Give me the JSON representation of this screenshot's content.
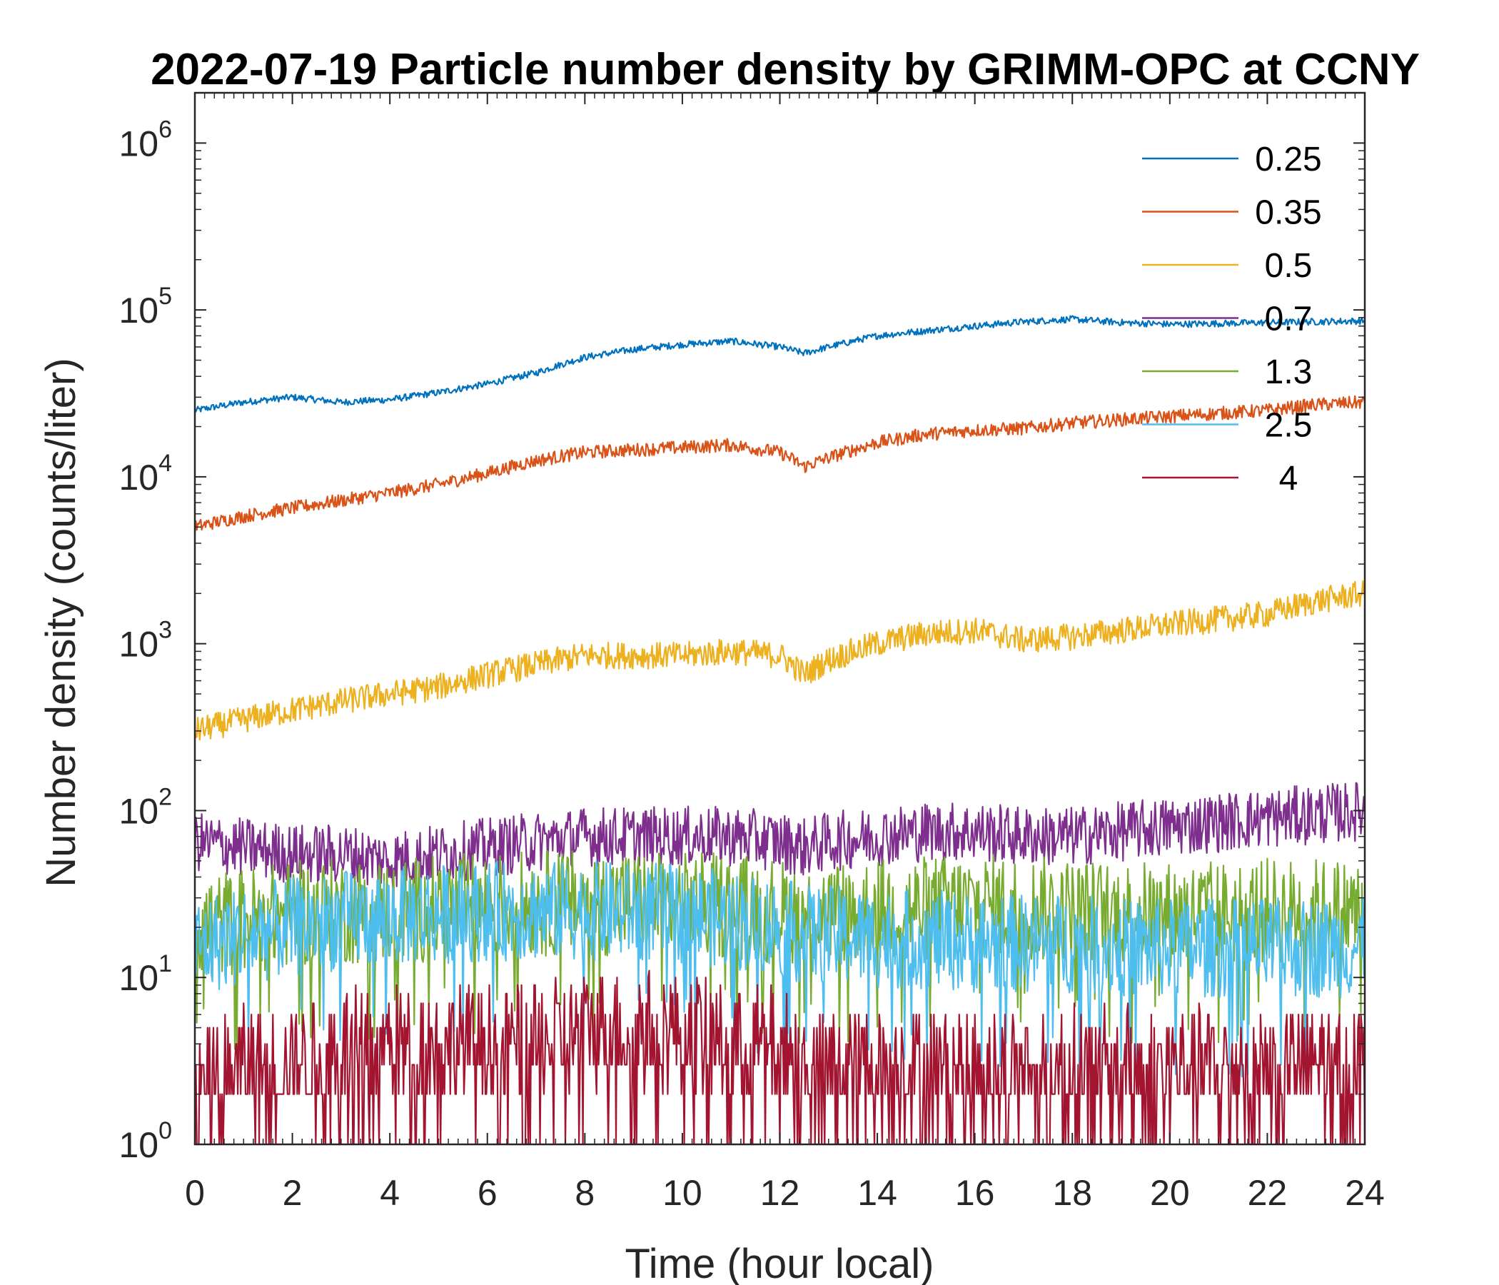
{
  "chart_data": {
    "type": "line",
    "title": "2022-07-19 Particle number density by GRIMM-OPC at CCNY",
    "xlabel": "Time (hour local)",
    "ylabel": "Number density (counts/liter)",
    "xlim": [
      0,
      24
    ],
    "ylim": [
      1,
      2000000
    ],
    "yscale": "log",
    "grid": false,
    "legend_position": "top-right",
    "x_ticks": [
      "0",
      "2",
      "4",
      "6",
      "8",
      "10",
      "12",
      "14",
      "16",
      "18",
      "20",
      "22",
      "24"
    ],
    "y_ticks": [
      {
        "base": "10",
        "exp": "0"
      },
      {
        "base": "10",
        "exp": "1"
      },
      {
        "base": "10",
        "exp": "2"
      },
      {
        "base": "10",
        "exp": "3"
      },
      {
        "base": "10",
        "exp": "4"
      },
      {
        "base": "10",
        "exp": "5"
      },
      {
        "base": "10",
        "exp": "6"
      }
    ],
    "x": [
      0,
      1,
      2,
      3,
      4,
      5,
      6,
      7,
      8,
      9,
      10,
      11,
      12,
      12.5,
      13,
      14,
      15,
      16,
      17,
      18,
      19,
      20,
      21,
      22,
      23,
      24
    ],
    "series": [
      {
        "name": "0.25",
        "color": "#0072BD",
        "values": [
          25000,
          28000,
          30000,
          28000,
          29000,
          32000,
          36000,
          42000,
          52000,
          58000,
          62000,
          65000,
          60000,
          55000,
          60000,
          70000,
          75000,
          80000,
          85000,
          88000,
          84000,
          82000,
          83000,
          84000,
          85000,
          86000
        ]
      },
      {
        "name": "0.35",
        "color": "#D95319",
        "values": [
          5000,
          5800,
          6500,
          7200,
          8000,
          9000,
          10500,
          12500,
          14000,
          14500,
          15000,
          15500,
          14000,
          11500,
          13000,
          16000,
          18000,
          19000,
          19500,
          21000,
          22000,
          23000,
          24000,
          25000,
          27000,
          28000
        ]
      },
      {
        "name": "0.5",
        "color": "#EDB120",
        "values": [
          300,
          350,
          400,
          450,
          500,
          550,
          650,
          750,
          850,
          850,
          850,
          900,
          850,
          650,
          800,
          1000,
          1150,
          1200,
          1050,
          1100,
          1200,
          1300,
          1400,
          1500,
          1800,
          2000
        ]
      },
      {
        "name": "0.7",
        "color": "#7E2F8E",
        "values": [
          65,
          60,
          55,
          55,
          50,
          55,
          60,
          65,
          70,
          70,
          70,
          70,
          65,
          60,
          65,
          70,
          75,
          75,
          70,
          70,
          75,
          80,
          85,
          90,
          95,
          100
        ]
      },
      {
        "name": "1.3",
        "color": "#77AC30",
        "values": [
          20,
          22,
          24,
          25,
          25,
          26,
          27,
          28,
          28,
          28,
          27,
          27,
          25,
          23,
          24,
          25,
          26,
          27,
          26,
          25,
          24,
          24,
          24,
          25,
          25,
          25
        ]
      },
      {
        "name": "2.5",
        "color": "#4DBEEE",
        "values": [
          15,
          18,
          20,
          22,
          23,
          24,
          25,
          25,
          25,
          25,
          24,
          22,
          20,
          18,
          18,
          17,
          17,
          16,
          16,
          16,
          15,
          15,
          15,
          15,
          15,
          15
        ]
      },
      {
        "name": "4",
        "color": "#A2142F",
        "values": [
          2,
          3,
          3,
          4,
          4,
          4,
          4,
          4,
          5,
          5,
          5,
          4,
          4,
          3,
          3,
          3,
          3,
          3,
          3,
          3,
          3,
          3,
          3,
          3,
          3,
          3
        ]
      }
    ]
  }
}
